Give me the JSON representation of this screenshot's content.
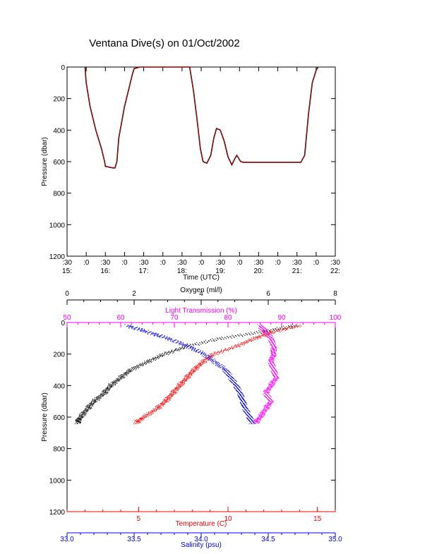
{
  "title": "Ventana Dive(s) on 01/Oct/2002",
  "colors": {
    "axis": "#000000",
    "oxygen": "#000000",
    "transmission": "#ff00ff",
    "temperature": "#ff0000",
    "salinity": "#0000ff",
    "trace": "#000000",
    "trace_overlay": "#ff0000"
  },
  "chart_data": [
    {
      "type": "line",
      "name": "time-series",
      "ylabel": "Pressure (dbar)",
      "xlabel": "Time (UTC)",
      "ylim": [
        1200,
        0
      ],
      "y_ticks": [
        "0",
        "200",
        "400",
        "600",
        "800",
        "1000",
        "1200"
      ],
      "x_ticks_minutes": [
        ":30",
        ":0",
        ":30",
        ":0",
        ":30",
        ":0",
        ":30",
        ":0",
        ":30",
        ":0",
        ":30",
        ":0",
        ":30",
        ":0",
        ":30"
      ],
      "x_ticks_hours": [
        "15:",
        "16:",
        "17:",
        "18:",
        "19:",
        "20:",
        "21:",
        "22:"
      ],
      "x_unit": "hours UTC",
      "xlim": [
        15.5,
        22.5
      ],
      "series": [
        {
          "x": [
            15.5,
            15.97,
            16.0,
            16.1,
            16.25,
            16.4,
            16.48,
            16.5,
            16.7,
            16.75,
            16.8,
            16.85,
            17.0,
            17.1,
            17.2,
            17.25,
            17.4,
            18.0,
            18.5,
            18.6,
            18.7,
            18.8,
            18.9,
            18.98,
            19.05,
            19.15,
            19.25,
            19.33,
            19.4,
            19.5,
            19.6,
            19.7,
            19.8,
            19.88,
            19.93,
            19.98,
            20.03,
            20.05,
            20.1,
            20.2,
            20.5,
            20.8,
            21.0,
            21.2,
            21.4,
            21.6,
            21.7,
            21.8,
            21.9,
            22.0,
            22.05
          ],
          "y": [
            null,
            0,
            100,
            250,
            400,
            520,
            600,
            630,
            640,
            640,
            600,
            450,
            250,
            150,
            50,
            10,
            0,
            0,
            0,
            0,
            0,
            150,
            350,
            520,
            600,
            610,
            560,
            450,
            390,
            400,
            470,
            570,
            620,
            580,
            560,
            580,
            600,
            600,
            605,
            605,
            605,
            605,
            605,
            605,
            605,
            605,
            560,
            300,
            100,
            20,
            0
          ]
        }
      ]
    },
    {
      "type": "scatter",
      "name": "profiles",
      "ylabel": "Pressure (dbar)",
      "ylim": [
        1200,
        0
      ],
      "y_ticks": [
        "0",
        "200",
        "400",
        "600",
        "800",
        "1000",
        "1200"
      ],
      "axes": {
        "oxygen": {
          "label": "Oxygen (ml/l)",
          "range": [
            0,
            8
          ],
          "ticks": [
            "0",
            "2",
            "4",
            "6",
            "8"
          ]
        },
        "transmission": {
          "label": "Light Transmission (%)",
          "range": [
            50,
            100
          ],
          "ticks": [
            "50",
            "60",
            "70",
            "80",
            "90",
            "100"
          ]
        },
        "temperature": {
          "label": "Temperature (C)",
          "range": [
            1,
            16
          ],
          "ticks": [
            "5",
            "10",
            "15"
          ]
        },
        "salinity": {
          "label": "Salinity (psu)",
          "range": [
            33.0,
            35.0
          ],
          "ticks": [
            "33.0",
            "33.5",
            "34.0",
            "34.5",
            "35.0"
          ]
        }
      },
      "series": [
        {
          "name": "Oxygen",
          "pressure": [
            20,
            60,
            100,
            150,
            200,
            250,
            300,
            350,
            400,
            450,
            500,
            550,
            600,
            640
          ],
          "value": [
            6.8,
            5.8,
            4.6,
            3.6,
            2.9,
            2.4,
            1.9,
            1.6,
            1.3,
            1.1,
            0.8,
            0.6,
            0.4,
            0.3
          ]
        },
        {
          "name": "Light Transmission",
          "pressure": [
            20,
            60,
            100,
            150,
            200,
            250,
            300,
            350,
            400,
            450,
            500,
            550,
            600,
            640
          ],
          "value": [
            86,
            87,
            88,
            88.5,
            88.5,
            88,
            88.5,
            89,
            88,
            87,
            88,
            87,
            86,
            85
          ]
        },
        {
          "name": "Temperature",
          "pressure": [
            20,
            60,
            100,
            150,
            200,
            250,
            300,
            350,
            400,
            450,
            500,
            550,
            600,
            640
          ],
          "value": [
            14.0,
            12.5,
            11.5,
            10.5,
            9.2,
            8.6,
            8.1,
            7.7,
            7.3,
            6.9,
            6.5,
            6.0,
            5.3,
            4.8
          ]
        },
        {
          "name": "Salinity",
          "pressure": [
            20,
            60,
            100,
            150,
            200,
            250,
            300,
            350,
            400,
            450,
            500,
            550,
            600,
            640
          ],
          "value": [
            33.45,
            33.6,
            33.75,
            33.9,
            34.02,
            34.1,
            34.18,
            34.22,
            34.26,
            34.29,
            34.31,
            34.33,
            34.36,
            34.38
          ]
        }
      ]
    }
  ]
}
